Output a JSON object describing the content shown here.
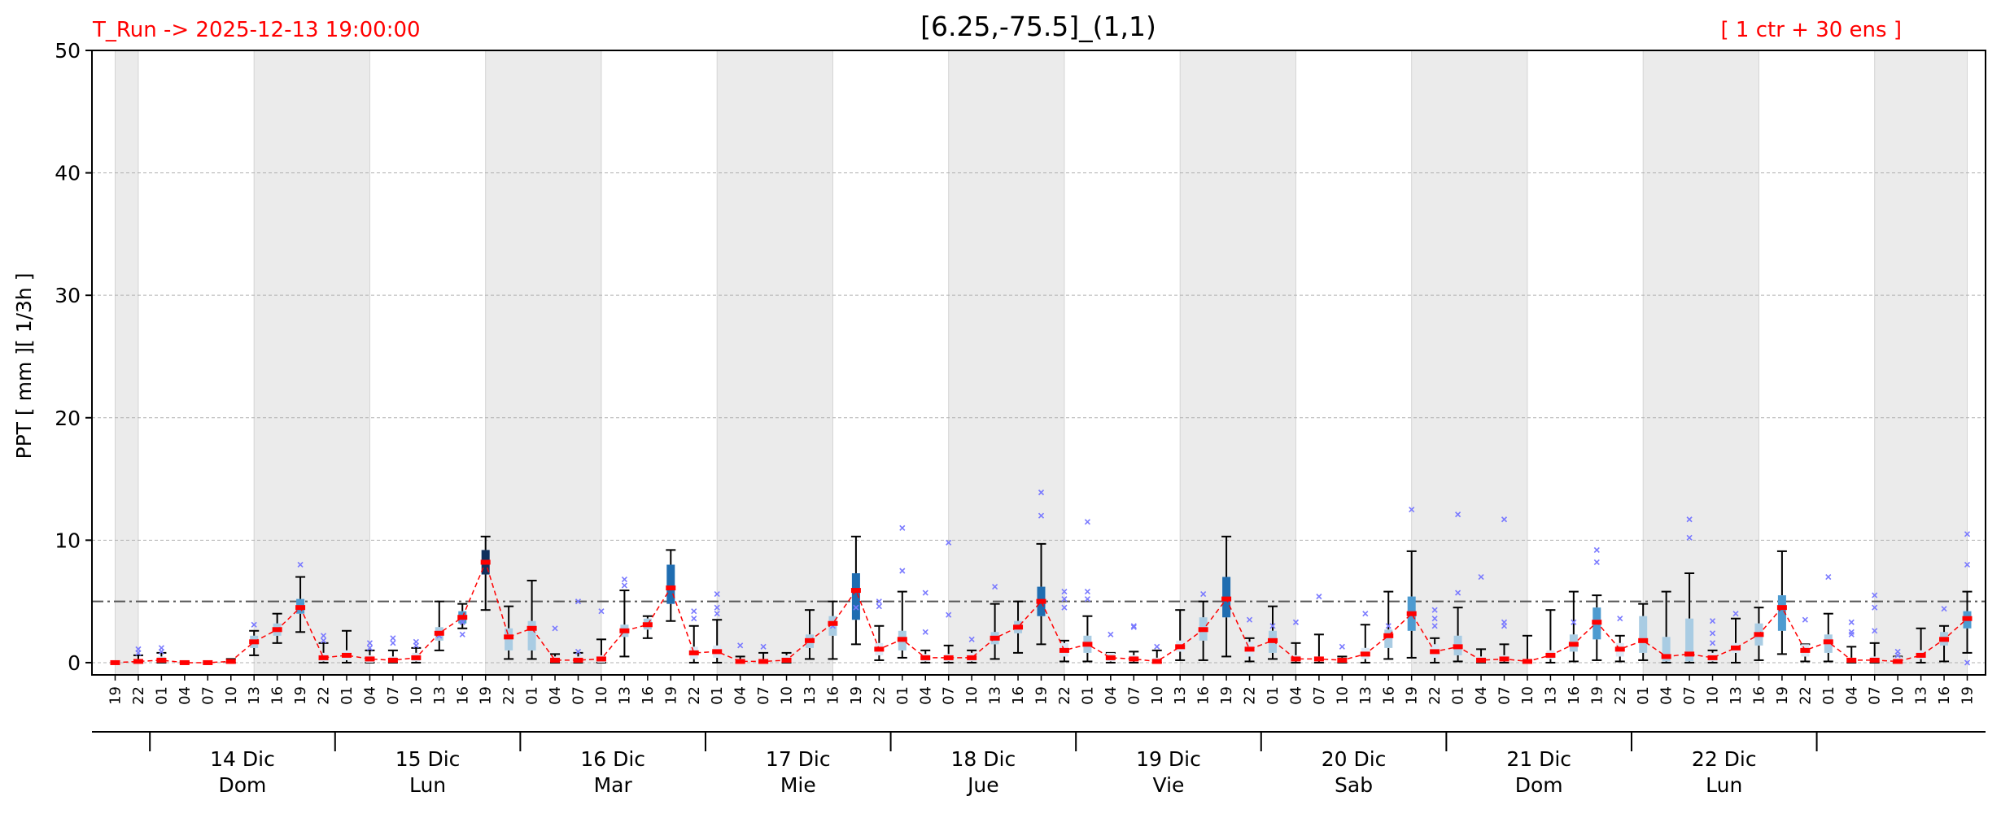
{
  "header": {
    "run_label": "T_Run -> 2025-12-13  19:00:00",
    "title": "[6.25,-75.5]_(1,1)",
    "ensemble_label": "[ 1 ctr + 30 ens ]"
  },
  "colors": {
    "header_accent": "#ff0000",
    "median_line": "#ff0000",
    "night_shade": "#ebebeb",
    "threshold_line": "#555555",
    "outlier": "#7a7aff",
    "box_levels": [
      "#dbe9f6",
      "#a9cce3",
      "#4d9bd0",
      "#1f6db1",
      "#10305e"
    ]
  },
  "chart_data": {
    "type": "box",
    "ylabel": "PPT  [ mm ][ 1/3h ]",
    "ylim": [
      -1,
      50
    ],
    "yticks": [
      0,
      10,
      20,
      30,
      40,
      50
    ],
    "threshold": 5,
    "grid": "horizontal dashed",
    "x_hours": [
      "19",
      "22",
      "01",
      "04",
      "07",
      "10",
      "13",
      "16",
      "19",
      "22",
      "01",
      "04",
      "07",
      "10",
      "13",
      "16",
      "19",
      "22",
      "01",
      "04",
      "07",
      "10",
      "13",
      "16",
      "19",
      "22",
      "01",
      "04",
      "07",
      "10",
      "13",
      "16",
      "19",
      "22",
      "01",
      "04",
      "07",
      "10",
      "13",
      "16",
      "19",
      "22",
      "01",
      "04",
      "07",
      "10",
      "13",
      "16",
      "19",
      "22",
      "01",
      "04",
      "07",
      "10",
      "13",
      "16",
      "19",
      "22",
      "01",
      "04",
      "07",
      "10",
      "13",
      "16",
      "19",
      "22",
      "01",
      "04",
      "07",
      "10",
      "13",
      "16",
      "19",
      "22",
      "01",
      "04",
      "07",
      "10",
      "13",
      "16",
      "19"
    ],
    "days": [
      {
        "day": "14 Dic",
        "weekday": "Dom"
      },
      {
        "day": "15 Dic",
        "weekday": "Lun"
      },
      {
        "day": "16 Dic",
        "weekday": "Mar"
      },
      {
        "day": "17 Dic",
        "weekday": "Mie"
      },
      {
        "day": "18 Dic",
        "weekday": "Jue"
      },
      {
        "day": "19 Dic",
        "weekday": "Vie"
      },
      {
        "day": "20 Dic",
        "weekday": "Sab"
      },
      {
        "day": "21 Dic",
        "weekday": "Dom"
      },
      {
        "day": "22 Dic",
        "weekday": "Lun"
      }
    ],
    "night_spans": [
      [
        0,
        1
      ],
      [
        6,
        11
      ],
      [
        16,
        21
      ],
      [
        26,
        31
      ],
      [
        36,
        41
      ],
      [
        46,
        51
      ],
      [
        56,
        61
      ],
      [
        66,
        71
      ],
      [
        76,
        80
      ]
    ],
    "median": [
      0.0,
      0.1,
      0.2,
      0.0,
      0.0,
      0.1,
      1.7,
      2.7,
      4.5,
      0.4,
      0.6,
      0.3,
      0.2,
      0.4,
      2.4,
      3.7,
      8.2,
      2.1,
      2.8,
      0.2,
      0.2,
      0.3,
      2.6,
      3.1,
      6.1,
      0.8,
      0.9,
      0.1,
      0.1,
      0.2,
      1.8,
      3.2,
      5.9,
      1.1,
      1.9,
      0.4,
      0.4,
      0.4,
      2.0,
      2.9,
      5.0,
      1.0,
      1.5,
      0.4,
      0.3,
      0.1,
      1.3,
      2.7,
      5.2,
      1.1,
      1.8,
      0.3,
      0.3,
      0.2,
      0.7,
      2.2,
      4.0,
      0.9,
      1.3,
      0.2,
      0.3,
      0.1,
      0.6,
      1.5,
      3.3,
      1.1,
      1.8,
      0.5,
      0.7,
      0.4,
      1.2,
      2.3,
      4.5,
      1.0,
      1.7,
      0.2,
      0.2,
      0.1,
      0.6,
      1.9,
      3.6
    ],
    "q1": [
      0.0,
      0.0,
      0.0,
      0.0,
      0.0,
      0.0,
      1.2,
      2.2,
      4.0,
      0.1,
      0.2,
      0.0,
      0.0,
      0.1,
      1.8,
      3.2,
      7.2,
      1.0,
      1.0,
      0.0,
      0.0,
      0.0,
      2.1,
      2.7,
      4.8,
      0.3,
      0.4,
      0.0,
      0.0,
      0.0,
      1.2,
      2.2,
      3.5,
      0.6,
      1.0,
      0.1,
      0.1,
      0.1,
      1.5,
      2.4,
      3.8,
      0.5,
      0.8,
      0.1,
      0.1,
      0.0,
      0.9,
      1.8,
      3.7,
      0.5,
      0.8,
      0.1,
      0.1,
      0.0,
      0.3,
      1.2,
      2.6,
      0.4,
      0.6,
      0.0,
      0.1,
      0.0,
      0.3,
      0.9,
      1.9,
      0.5,
      0.8,
      0.1,
      0.1,
      0.1,
      0.8,
      1.4,
      2.6,
      0.5,
      0.8,
      0.0,
      0.0,
      0.0,
      0.3,
      1.4,
      2.8
    ],
    "q3": [
      0.0,
      0.3,
      0.5,
      0.1,
      0.0,
      0.2,
      2.2,
      3.2,
      5.2,
      0.8,
      1.0,
      0.6,
      0.5,
      0.8,
      2.9,
      4.2,
      9.2,
      2.8,
      3.4,
      0.5,
      0.5,
      0.6,
      3.1,
      3.6,
      8.0,
      1.3,
      1.4,
      0.3,
      0.3,
      0.6,
      2.3,
      3.8,
      7.3,
      1.6,
      2.6,
      0.7,
      0.7,
      0.8,
      2.5,
      3.4,
      6.2,
      1.6,
      2.2,
      0.8,
      0.6,
      0.4,
      1.8,
      3.7,
      7.0,
      1.7,
      2.6,
      0.6,
      0.5,
      0.4,
      1.2,
      2.7,
      5.4,
      1.5,
      2.2,
      0.5,
      0.6,
      0.3,
      1.0,
      2.3,
      4.5,
      1.6,
      3.8,
      2.1,
      3.6,
      0.8,
      1.6,
      3.2,
      5.5,
      1.5,
      2.3,
      0.4,
      0.5,
      0.5,
      1.0,
      2.5,
      4.2
    ],
    "whisker_low": [
      0.0,
      0.0,
      0.0,
      0.0,
      0.0,
      0.0,
      0.6,
      1.6,
      2.5,
      0.0,
      0.0,
      0.0,
      0.0,
      0.0,
      1.0,
      2.8,
      4.3,
      0.3,
      0.3,
      0.0,
      0.0,
      0.0,
      0.5,
      2.0,
      3.4,
      0.0,
      0.0,
      0.0,
      0.0,
      0.0,
      0.3,
      0.3,
      1.5,
      0.2,
      0.4,
      0.0,
      0.0,
      0.0,
      0.3,
      0.8,
      1.5,
      0.1,
      0.1,
      0.0,
      0.0,
      0.0,
      0.2,
      0.2,
      0.5,
      0.1,
      0.3,
      0.0,
      0.0,
      0.0,
      0.0,
      0.3,
      0.4,
      0.0,
      0.1,
      0.0,
      0.0,
      0.0,
      0.0,
      0.1,
      0.2,
      0.1,
      0.2,
      0.0,
      0.0,
      0.0,
      0.0,
      0.2,
      0.7,
      0.1,
      0.1,
      0.0,
      0.0,
      0.0,
      0.0,
      0.1,
      0.8
    ],
    "whisker_high": [
      0.0,
      0.6,
      0.8,
      0.1,
      0.0,
      0.3,
      2.6,
      4.0,
      7.0,
      1.6,
      2.6,
      1.0,
      1.0,
      1.2,
      5.0,
      4.8,
      10.3,
      4.6,
      6.7,
      0.7,
      0.8,
      1.9,
      5.9,
      3.8,
      9.2,
      3.0,
      3.5,
      0.5,
      0.8,
      0.8,
      4.3,
      5.0,
      10.3,
      3.0,
      5.8,
      1.0,
      1.4,
      1.0,
      4.8,
      5.0,
      9.7,
      1.8,
      3.8,
      0.8,
      0.9,
      1.0,
      4.3,
      5.0,
      10.3,
      2.0,
      4.6,
      1.6,
      2.3,
      0.5,
      3.1,
      5.8,
      9.1,
      2.0,
      4.5,
      1.1,
      1.5,
      2.2,
      4.3,
      5.8,
      5.5,
      2.2,
      4.8,
      5.8,
      7.3,
      1.0,
      3.6,
      4.5,
      9.1,
      1.5,
      4.0,
      1.3,
      1.6,
      0.5,
      2.8,
      3.0,
      5.8
    ],
    "outliers": [
      [
        1,
        0.8
      ],
      [
        1,
        1.1
      ],
      [
        2,
        0.9
      ],
      [
        2,
        1.2
      ],
      [
        6,
        3.1
      ],
      [
        8,
        8.0
      ],
      [
        9,
        1.8
      ],
      [
        9,
        2.2
      ],
      [
        11,
        1.2
      ],
      [
        11,
        1.6
      ],
      [
        12,
        1.6
      ],
      [
        12,
        2.0
      ],
      [
        13,
        1.4
      ],
      [
        13,
        1.7
      ],
      [
        14,
        2.2
      ],
      [
        15,
        2.3
      ],
      [
        15,
        3.3
      ],
      [
        19,
        2.8
      ],
      [
        20,
        0.9
      ],
      [
        20,
        5.0
      ],
      [
        21,
        4.2
      ],
      [
        22,
        6.3
      ],
      [
        22,
        6.8
      ],
      [
        25,
        3.6
      ],
      [
        25,
        4.2
      ],
      [
        26,
        4.0
      ],
      [
        26,
        4.5
      ],
      [
        26,
        5.6
      ],
      [
        27,
        1.4
      ],
      [
        28,
        1.3
      ],
      [
        31,
        3.0
      ],
      [
        32,
        4.5
      ],
      [
        33,
        4.6
      ],
      [
        33,
        5.0
      ],
      [
        34,
        7.5
      ],
      [
        34,
        11.0
      ],
      [
        35,
        2.5
      ],
      [
        35,
        5.7
      ],
      [
        36,
        3.9
      ],
      [
        36,
        9.8
      ],
      [
        37,
        1.9
      ],
      [
        38,
        6.2
      ],
      [
        40,
        12.0
      ],
      [
        40,
        13.9
      ],
      [
        41,
        4.5
      ],
      [
        41,
        5.2
      ],
      [
        41,
        5.8
      ],
      [
        42,
        5.2
      ],
      [
        42,
        5.8
      ],
      [
        42,
        11.5
      ],
      [
        43,
        2.3
      ],
      [
        44,
        2.9
      ],
      [
        44,
        3.0
      ],
      [
        45,
        1.3
      ],
      [
        47,
        5.6
      ],
      [
        49,
        3.5
      ],
      [
        50,
        3.0
      ],
      [
        51,
        3.3
      ],
      [
        52,
        5.4
      ],
      [
        53,
        1.3
      ],
      [
        54,
        4.0
      ],
      [
        55,
        3.0
      ],
      [
        56,
        12.5
      ],
      [
        57,
        3.0
      ],
      [
        57,
        3.6
      ],
      [
        57,
        4.3
      ],
      [
        58,
        5.7
      ],
      [
        58,
        12.1
      ],
      [
        59,
        7.0
      ],
      [
        60,
        3.0
      ],
      [
        60,
        3.3
      ],
      [
        60,
        11.7
      ],
      [
        63,
        3.3
      ],
      [
        64,
        8.2
      ],
      [
        64,
        9.2
      ],
      [
        65,
        3.6
      ],
      [
        68,
        10.2
      ],
      [
        68,
        11.7
      ],
      [
        69,
        1.6
      ],
      [
        69,
        2.4
      ],
      [
        69,
        3.4
      ],
      [
        70,
        4.0
      ],
      [
        73,
        3.5
      ],
      [
        74,
        7.0
      ],
      [
        75,
        2.3
      ],
      [
        75,
        2.5
      ],
      [
        75,
        3.3
      ],
      [
        76,
        2.6
      ],
      [
        76,
        4.5
      ],
      [
        76,
        5.5
      ],
      [
        77,
        0.6
      ],
      [
        77,
        0.9
      ],
      [
        79,
        4.4
      ],
      [
        80,
        0.0
      ],
      [
        80,
        8.0
      ],
      [
        80,
        10.5
      ]
    ]
  }
}
